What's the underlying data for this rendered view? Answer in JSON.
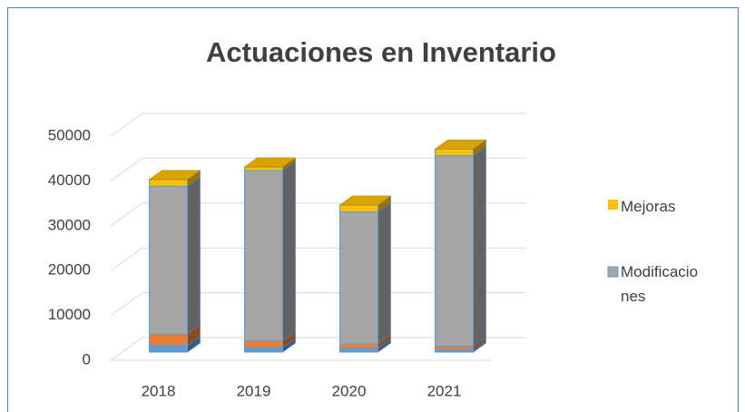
{
  "chart_data": {
    "type": "bar3d_stacked",
    "title": "Actuaciones en Inventario",
    "categories": [
      "2018",
      "2019",
      "2020",
      "2021"
    ],
    "series": [
      {
        "color": "#5b9bd5",
        "values": [
          1500,
          1000,
          800,
          500
        ]
      },
      {
        "color": "#ed7d31",
        "values": [
          2500,
          1500,
          1000,
          800
        ]
      },
      {
        "name": "Modificaciones",
        "color": "#a5a5a5",
        "values": [
          33000,
          38000,
          29500,
          42500
        ]
      },
      {
        "name": "Mejoras",
        "color": "#ffc000",
        "values": [
          1500,
          800,
          1500,
          1500
        ]
      }
    ],
    "ylim": [
      0,
      50000
    ],
    "yticks": [
      0,
      10000,
      20000,
      30000,
      40000,
      50000
    ],
    "grid": true
  }
}
